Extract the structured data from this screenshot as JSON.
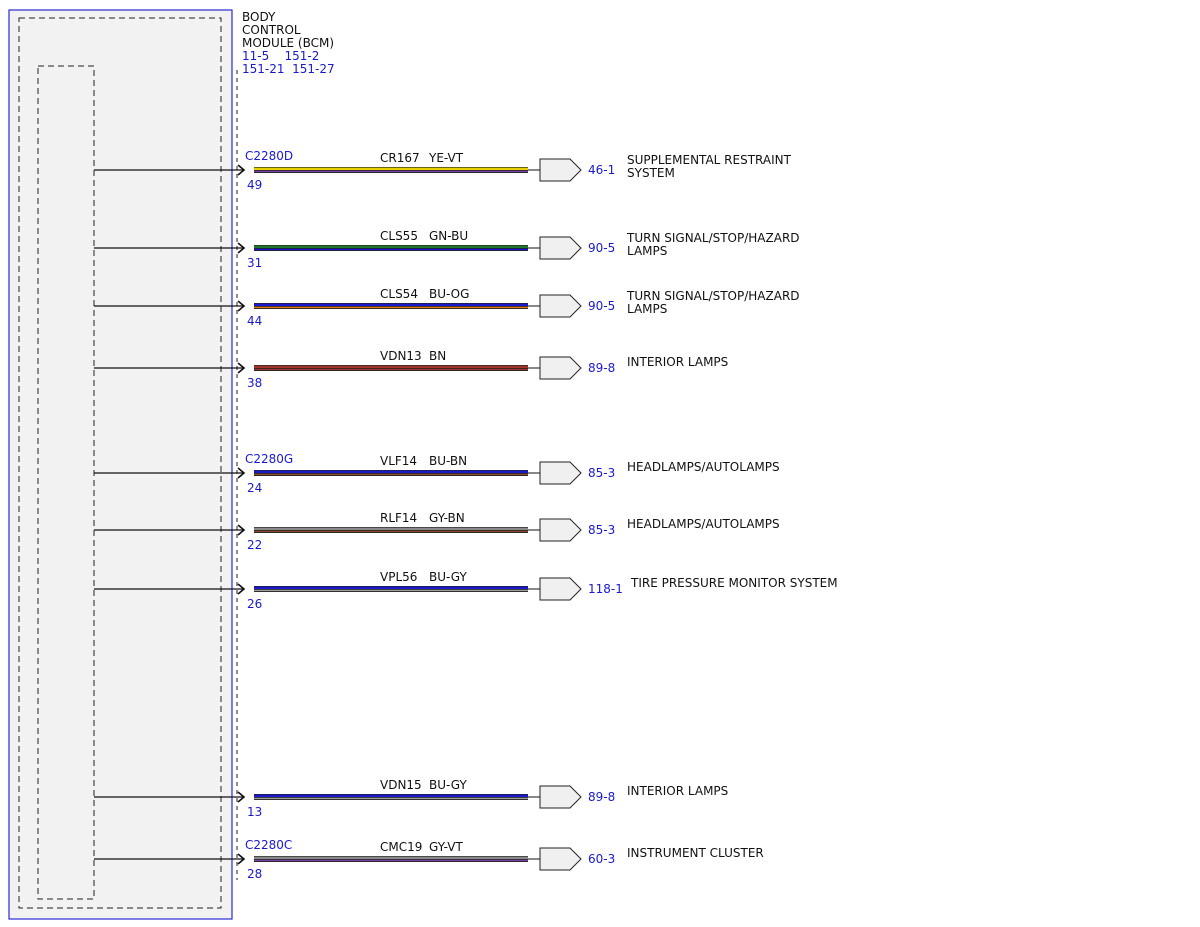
{
  "module": {
    "title_lines": [
      "BODY",
      "CONTROL",
      "MODULE (BCM)"
    ],
    "ref_lines": [
      "11-5    151-2",
      "151-21  151-27"
    ]
  },
  "circuits": [
    {
      "connector": "C2280D",
      "pin": "49",
      "circuit": "CR167",
      "color_code": "YE-VT",
      "wire_colors": [
        "#e8d000",
        "#7a3fa0"
      ],
      "ref": "46-1",
      "dest_lines": [
        "SUPPLEMENTAL RESTRAINT",
        "SYSTEM"
      ]
    },
    {
      "connector": "",
      "pin": "31",
      "circuit": "CLS55",
      "color_code": "GN-BU",
      "wire_colors": [
        "#1e7a2a",
        "#1a1acc"
      ],
      "ref": "90-5",
      "dest_lines": [
        "TURN SIGNAL/STOP/HAZARD",
        "LAMPS"
      ]
    },
    {
      "connector": "",
      "pin": "44",
      "circuit": "CLS54",
      "color_code": "BU-OG",
      "wire_colors": [
        "#1a1acc",
        "#e07a10"
      ],
      "ref": "90-5",
      "dest_lines": [
        "TURN SIGNAL/STOP/HAZARD",
        "LAMPS"
      ]
    },
    {
      "connector": "",
      "pin": "38",
      "circuit": "VDN13",
      "color_code": "BN",
      "wire_colors": [
        "#a0322d",
        "#a0322d"
      ],
      "ref": "89-8",
      "dest_lines": [
        "INTERIOR LAMPS"
      ]
    },
    {
      "connector": "C2280G",
      "pin": "24",
      "circuit": "VLF14",
      "color_code": "BU-BN",
      "wire_colors": [
        "#1a1acc",
        "#8a4b2a"
      ],
      "ref": "85-3",
      "dest_lines": [
        "HEADLAMPS/AUTOLAMPS"
      ]
    },
    {
      "connector": "",
      "pin": "22",
      "circuit": "RLF14",
      "color_code": "GY-BN",
      "wire_colors": [
        "#8a8a8a",
        "#8a4b2a"
      ],
      "ref": "85-3",
      "dest_lines": [
        "HEADLAMPS/AUTOLAMPS"
      ]
    },
    {
      "connector": "",
      "pin": "26",
      "circuit": "VPL56",
      "color_code": "BU-GY",
      "wire_colors": [
        "#1a1acc",
        "#9a9a9a"
      ],
      "ref": "118-1",
      "dest_lines": [
        "TIRE PRESSURE MONITOR SYSTEM"
      ]
    },
    {
      "connector": "",
      "pin": "13",
      "circuit": "VDN15",
      "color_code": "BU-GY",
      "wire_colors": [
        "#1a1acc",
        "#9a9a9a"
      ],
      "ref": "89-8",
      "dest_lines": [
        "INTERIOR LAMPS"
      ]
    },
    {
      "connector": "C2280C",
      "pin": "28",
      "circuit": "CMC19",
      "color_code": "GY-VT",
      "wire_colors": [
        "#8a8a8a",
        "#7a3fa0"
      ],
      "ref": "60-3",
      "dest_lines": [
        "INSTRUMENT CLUSTER"
      ]
    }
  ],
  "colors": {
    "module_border": "#2a2ad4",
    "module_fill": "#f2f2f2",
    "connector_fill": "#f0f0f0",
    "text": "#111111",
    "reference_text": "#1a1acc"
  }
}
